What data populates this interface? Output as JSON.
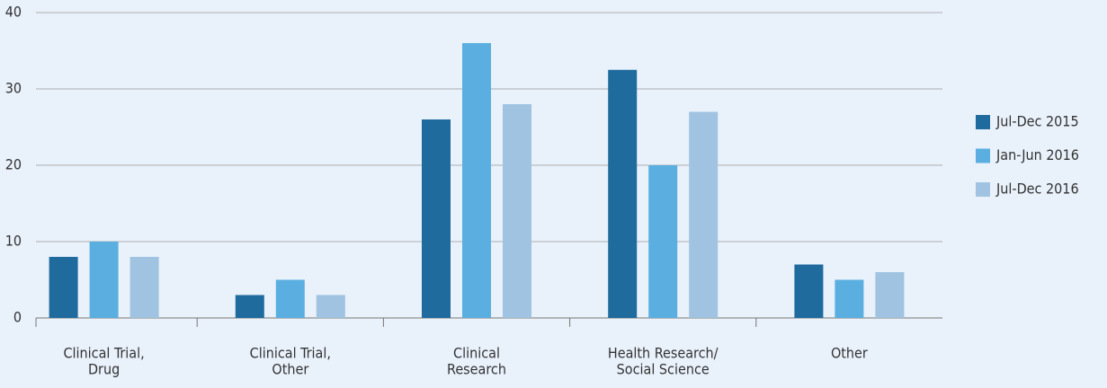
{
  "chart_data": {
    "type": "bar",
    "categories": [
      [
        "Clinical Trial,",
        "Drug"
      ],
      [
        "Clinical Trial,",
        "Other"
      ],
      [
        "Clinical",
        "Research"
      ],
      [
        "Health Research/",
        "Social Science"
      ],
      [
        "Other"
      ]
    ],
    "series": [
      {
        "name": "Jul-Dec 2015",
        "color": "#1f6b9e",
        "values": [
          8,
          3,
          26,
          32.5,
          7
        ]
      },
      {
        "name": "Jan-Jun 2016",
        "color": "#5aafe0",
        "values": [
          10,
          5,
          36,
          20,
          5
        ]
      },
      {
        "name": "Jul-Dec 2016",
        "color": "#9fc3e0",
        "values": [
          8,
          3,
          28,
          27,
          6
        ]
      }
    ],
    "ylim": [
      0,
      40
    ],
    "yticks": [
      0,
      10,
      20,
      30,
      40
    ],
    "grid": true,
    "legend": "right"
  }
}
